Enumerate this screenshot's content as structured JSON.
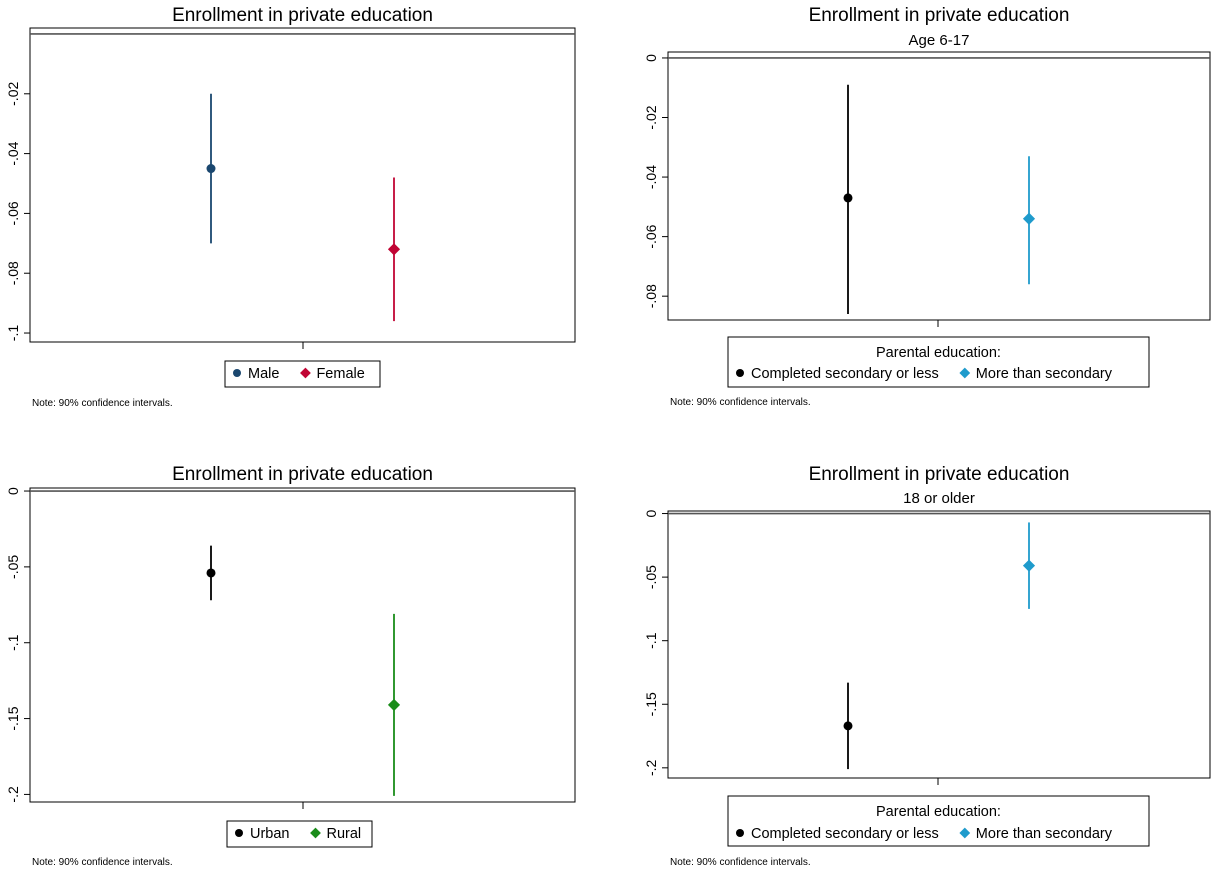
{
  "note": "Note: 90% confidence intervals.",
  "chart_data": [
    {
      "type": "scatter",
      "title": "Enrollment in private education",
      "subtitle": "",
      "ylim": [
        -0.103,
        0.002
      ],
      "yticks": [
        -0.1,
        -0.08,
        -0.06,
        -0.04,
        -0.02
      ],
      "ytick_labels": [
        "-.1",
        "-.08",
        "-.06",
        "-.04",
        "-.02"
      ],
      "reference_line": 0,
      "legend_title": "",
      "series": [
        {
          "name": "Male",
          "marker": "circle",
          "color": "#1a476f",
          "x": 1,
          "y": -0.045,
          "ci": [
            -0.07,
            -0.02
          ]
        },
        {
          "name": "Female",
          "marker": "diamond",
          "color": "#c10534",
          "x": 2,
          "y": -0.072,
          "ci": [
            -0.096,
            -0.048
          ]
        }
      ]
    },
    {
      "type": "scatter",
      "title": "Enrollment in private education",
      "subtitle": "Age 6-17",
      "ylim": [
        -0.088,
        0.002
      ],
      "yticks": [
        -0.08,
        -0.06,
        -0.04,
        -0.02,
        0
      ],
      "ytick_labels": [
        "-.08",
        "-.06",
        "-.04",
        "-.02",
        "0"
      ],
      "reference_line": 0,
      "legend_title": "Parental education:",
      "series": [
        {
          "name": "Completed secondary or less",
          "marker": "circle",
          "color": "#000000",
          "x": 1,
          "y": -0.047,
          "ci": [
            -0.086,
            -0.009
          ]
        },
        {
          "name": "More than secondary",
          "marker": "diamond",
          "color": "#1f9bcc",
          "x": 2,
          "y": -0.054,
          "ci": [
            -0.076,
            -0.033
          ]
        }
      ]
    },
    {
      "type": "scatter",
      "title": "Enrollment in private education",
      "subtitle": "",
      "ylim": [
        -0.205,
        0.002
      ],
      "yticks": [
        -0.2,
        -0.15,
        -0.1,
        -0.05,
        0
      ],
      "ytick_labels": [
        "-.2",
        "-.15",
        "-.1",
        "-.05",
        "0"
      ],
      "reference_line": 0,
      "legend_title": "",
      "series": [
        {
          "name": "Urban",
          "marker": "circle",
          "color": "#000000",
          "x": 1,
          "y": -0.054,
          "ci": [
            -0.072,
            -0.036
          ]
        },
        {
          "name": "Rural",
          "marker": "diamond",
          "color": "#1a8c1a",
          "x": 2,
          "y": -0.141,
          "ci": [
            -0.201,
            -0.081
          ]
        }
      ]
    },
    {
      "type": "scatter",
      "title": "Enrollment in private education",
      "subtitle": "18 or older",
      "ylim": [
        -0.208,
        0.002
      ],
      "yticks": [
        -0.2,
        -0.15,
        -0.1,
        -0.05,
        0
      ],
      "ytick_labels": [
        "-.2",
        "-.15",
        "-.1",
        "-.05",
        "0"
      ],
      "reference_line": 0,
      "legend_title": "Parental education:",
      "series": [
        {
          "name": "Completed secondary or less",
          "marker": "circle",
          "color": "#000000",
          "x": 1,
          "y": -0.167,
          "ci": [
            -0.201,
            -0.133
          ]
        },
        {
          "name": "More than secondary",
          "marker": "diamond",
          "color": "#1f9bcc",
          "x": 2,
          "y": -0.041,
          "ci": [
            -0.075,
            -0.007
          ]
        }
      ]
    }
  ]
}
